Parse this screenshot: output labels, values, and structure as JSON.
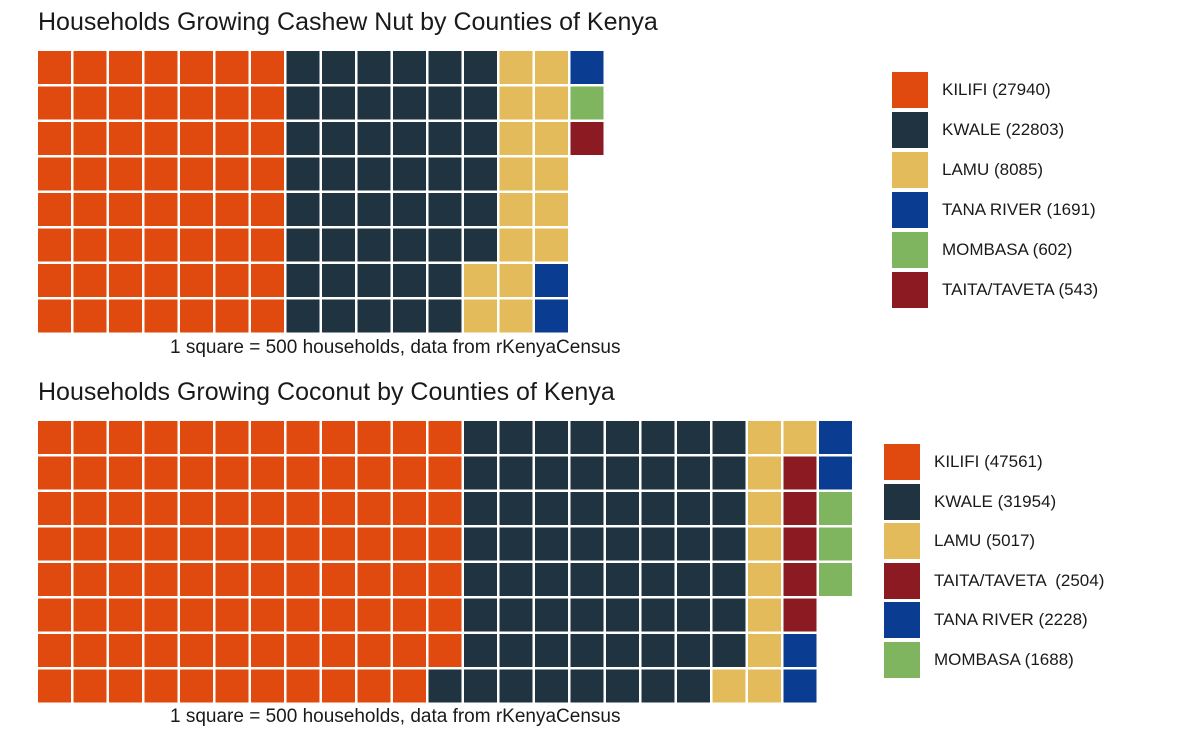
{
  "chart_data": [
    {
      "type": "waffle",
      "title": "Households Growing Cashew Nut by Counties of Kenya",
      "caption": "1 square = 500 households, data from rKenyaCensus",
      "rows": 8,
      "series": [
        {
          "name": "KILIFI",
          "value": 27940,
          "label": "KILIFI (27940)",
          "squares": 56,
          "color": "#E04A0E"
        },
        {
          "name": "KWALE",
          "value": 22803,
          "label": "KWALE (22803)",
          "squares": 46,
          "color": "#1F3340"
        },
        {
          "name": "LAMU",
          "value": 8085,
          "label": "LAMU (8085)",
          "squares": 16,
          "color": "#E4BB5A"
        },
        {
          "name": "TANA RIVER",
          "value": 1691,
          "label": "TANA RIVER (1691)",
          "squares": 3,
          "color": "#0A3D91"
        },
        {
          "name": "MOMBASA",
          "value": 602,
          "label": "MOMBASA (602)",
          "squares": 1,
          "color": "#7FB55E"
        },
        {
          "name": "TAITA/TAVETA",
          "value": 543,
          "label": "TAITA/TAVETA (543)",
          "squares": 1,
          "color": "#8B1A22"
        }
      ],
      "legend_position": "right"
    },
    {
      "type": "waffle",
      "title": "Households Growing Coconut by Counties of Kenya",
      "caption": "1 square = 500 households, data from rKenyaCensus",
      "rows": 8,
      "series": [
        {
          "name": "KILIFI",
          "value": 47561,
          "label": "KILIFI (47561)",
          "squares": 95,
          "color": "#E04A0E"
        },
        {
          "name": "KWALE",
          "value": 31954,
          "label": "KWALE (31954)",
          "squares": 64,
          "color": "#1F3340"
        },
        {
          "name": "LAMU",
          "value": 5017,
          "label": "LAMU (5017)",
          "squares": 10,
          "color": "#E4BB5A"
        },
        {
          "name": "TAITA/TAVETA",
          "value": 2504,
          "label": "TAITA/TAVETA  (2504)",
          "squares": 5,
          "color": "#8B1A22"
        },
        {
          "name": "TANA RIVER",
          "value": 2228,
          "label": "TANA RIVER (2228)",
          "squares": 4,
          "color": "#0A3D91"
        },
        {
          "name": "MOMBASA",
          "value": 1688,
          "label": "MOMBASA (1688)",
          "squares": 3,
          "color": "#7FB55E"
        }
      ],
      "legend_position": "right"
    }
  ]
}
